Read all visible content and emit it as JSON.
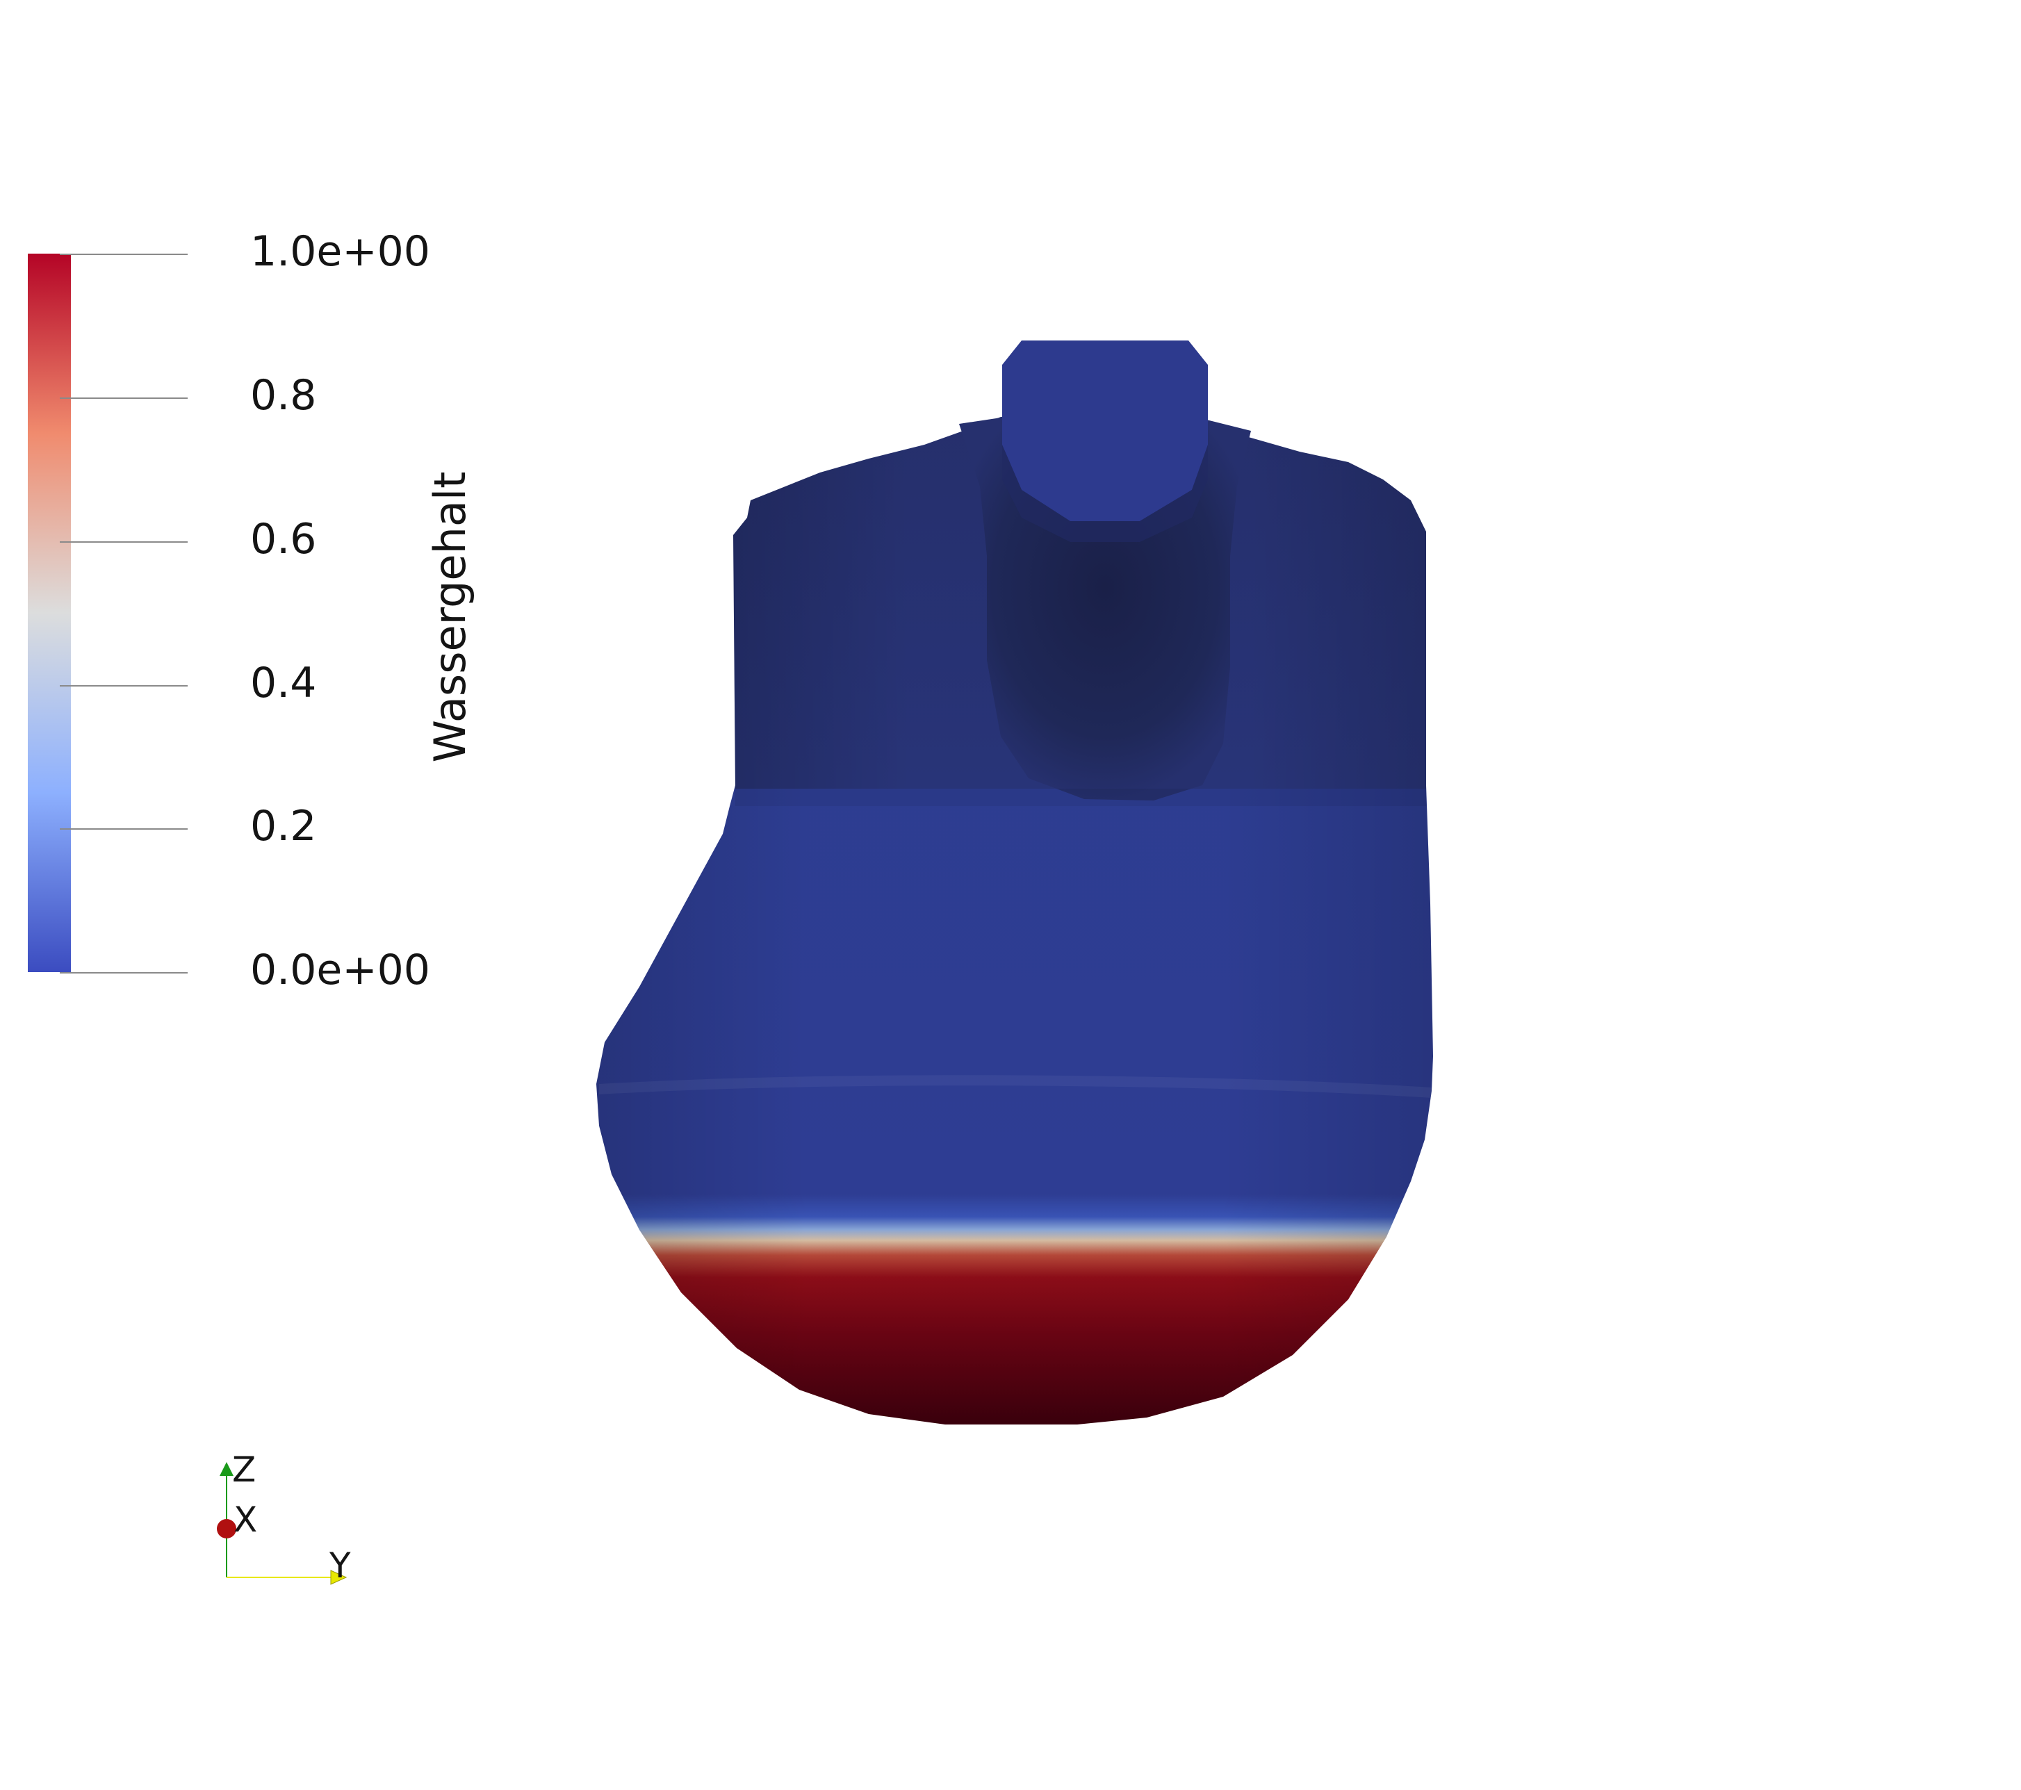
{
  "colorbar": {
    "title": "Wassergehalt",
    "labels": [
      "1.0e+00",
      "0.8",
      "0.6",
      "0.4",
      "0.2",
      "0.0e+00"
    ],
    "range": [
      0,
      1
    ],
    "colormap": "cool-warm",
    "colors": {
      "max": "#b40426",
      "upper": "#f08b6e",
      "mid": "#dcdddd",
      "lower": "#8db0fe",
      "min": "#3b4cc0"
    }
  },
  "orientation_axes": {
    "z_label": "Z",
    "x_label": "X",
    "y_label": "Y",
    "colors": {
      "z": "#1a9a1a",
      "x": "#b01010",
      "y": "#e8e800"
    }
  },
  "model": {
    "description_colors": {
      "dry": "#2e3e94",
      "dry_dark": "#1c2350",
      "wet": "#8a0a16",
      "wet_dark": "#3a000c"
    }
  }
}
